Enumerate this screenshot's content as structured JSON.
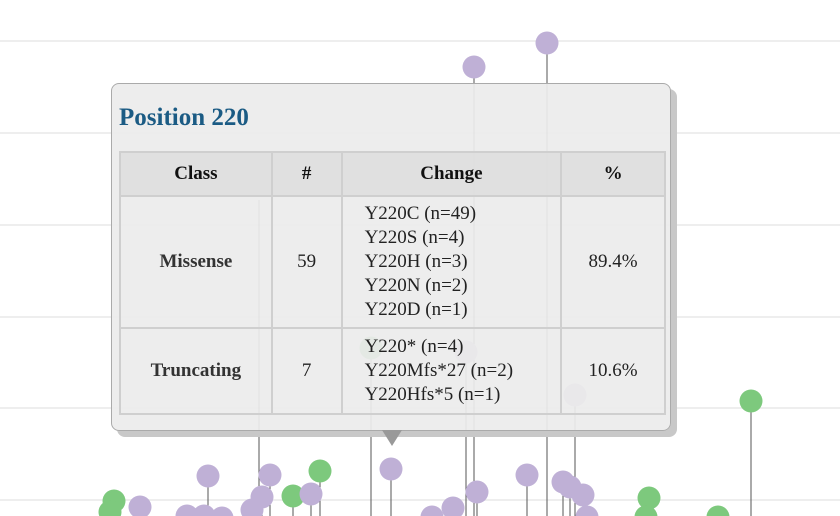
{
  "colors": {
    "missense": "#bfb0d6",
    "truncating": "#7dc97d",
    "title": "#1b5b84"
  },
  "tooltip": {
    "title": "Position 220",
    "headers": [
      "Class",
      "#",
      "Change",
      "%"
    ],
    "rows": [
      {
        "class": "Missense",
        "count": "59",
        "changes": [
          "Y220C (n=49)",
          "Y220S (n=4)",
          "Y220H (n=3)",
          "Y220N (n=2)",
          "Y220D (n=1)"
        ],
        "percent": "89.4%"
      },
      {
        "class": "Truncating",
        "count": "7",
        "changes": [
          "Y220* (n=4)",
          "Y220Mfs*27 (n=2)",
          "Y220Hfs*5 (n=1)"
        ],
        "percent": "10.6%"
      }
    ]
  }
}
